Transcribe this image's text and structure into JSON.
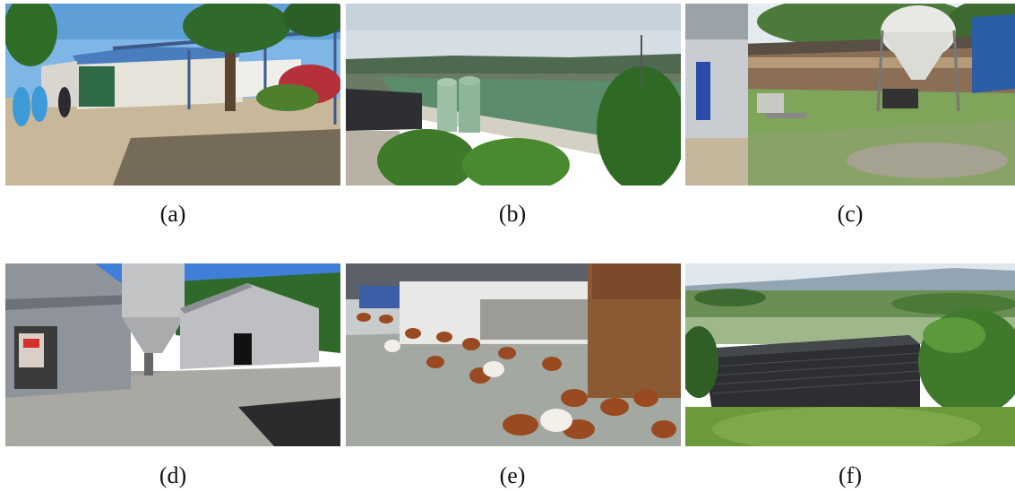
{
  "figure": {
    "panels": [
      {
        "label": "(a)",
        "scene": "farm-buildings-dirt-yard-workers"
      },
      {
        "label": "(b)",
        "scene": "long-green-roof-poultry-houses-silos"
      },
      {
        "label": "(c)",
        "scene": "poultry-house-side-feed-silo-grass"
      },
      {
        "label": "(d)",
        "scene": "gray-metal-poultry-house-silo-gravel"
      },
      {
        "label": "(e)",
        "scene": "free-range-chickens-yard"
      },
      {
        "label": "(f)",
        "scene": "black-greenhouse-roof-landscape"
      }
    ]
  }
}
